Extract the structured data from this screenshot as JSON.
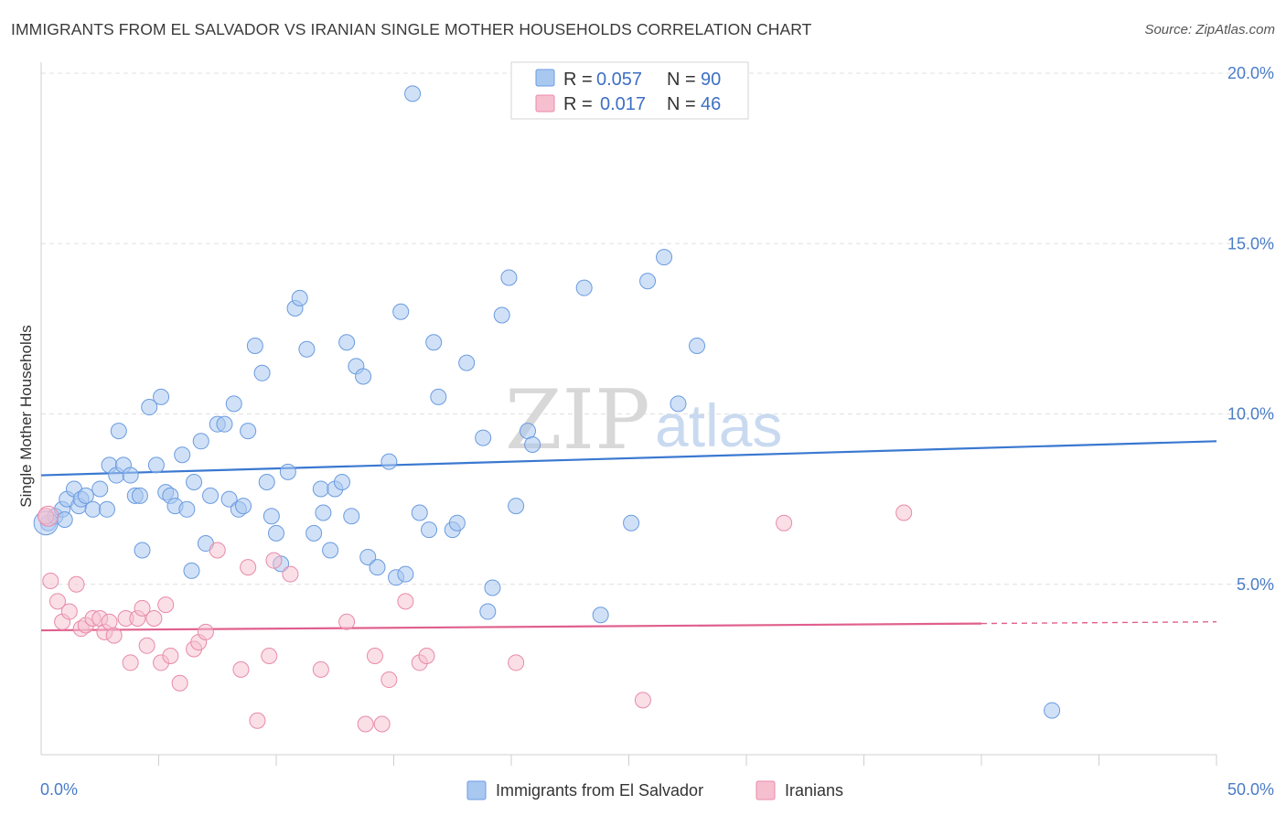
{
  "header": {
    "title": "IMMIGRANTS FROM EL SALVADOR VS IRANIAN SINGLE MOTHER HOUSEHOLDS CORRELATION CHART",
    "source": "Source: ZipAtlas.com"
  },
  "watermark": {
    "zip": "ZIP",
    "atlas": "atlas"
  },
  "legend": {
    "rows": [
      {
        "r_label": "R =",
        "r_value": "0.057",
        "n_label": "N =",
        "n_value": "90"
      },
      {
        "r_label": "R =",
        "r_value": "0.017",
        "n_label": "N =",
        "n_value": "46"
      }
    ]
  },
  "bottom_legend": {
    "items": [
      "Immigrants from El Salvador",
      "Iranians"
    ]
  },
  "colors": {
    "blue_fill": "#a9c8f0",
    "blue_stroke": "#6a9be0",
    "blue_line": "#3a78d0",
    "pink_fill": "#f6bfd0",
    "pink_stroke": "#e88aaa",
    "pink_line": "#e0608e",
    "tick_text": "#4a7cc7",
    "grid": "#e0e0e0"
  },
  "chart_data": {
    "type": "scatter",
    "title": "IMMIGRANTS FROM EL SALVADOR VS IRANIAN SINGLE MOTHER HOUSEHOLDS CORRELATION CHART",
    "xlabel": "",
    "ylabel": "Single Mother Households",
    "xlim": [
      0,
      50
    ],
    "ylim": [
      0,
      20
    ],
    "x_tick_labels": [
      "0.0%",
      "50.0%"
    ],
    "y_ticks": [
      5,
      10,
      15,
      20
    ],
    "y_tick_labels": [
      "5.0%",
      "10.0%",
      "15.0%",
      "20.0%"
    ],
    "grid": "horizontal dashed",
    "legend_position": "top-center",
    "series": [
      {
        "name": "Immigrants from El Salvador",
        "R": 0.057,
        "N": 90,
        "trend": {
          "x": [
            0,
            50
          ],
          "y": [
            8.2,
            9.2
          ]
        },
        "points": [
          [
            0.3,
            6.8
          ],
          [
            0.6,
            7.0
          ],
          [
            0.9,
            7.2
          ],
          [
            1.0,
            6.9
          ],
          [
            1.1,
            7.5
          ],
          [
            1.4,
            7.8
          ],
          [
            1.6,
            7.3
          ],
          [
            1.7,
            7.5
          ],
          [
            1.9,
            7.6
          ],
          [
            2.2,
            7.2
          ],
          [
            2.5,
            7.8
          ],
          [
            2.8,
            7.2
          ],
          [
            2.9,
            8.5
          ],
          [
            3.2,
            8.2
          ],
          [
            3.3,
            9.5
          ],
          [
            3.5,
            8.5
          ],
          [
            3.8,
            8.2
          ],
          [
            4.0,
            7.6
          ],
          [
            4.2,
            7.6
          ],
          [
            4.3,
            6.0
          ],
          [
            4.6,
            10.2
          ],
          [
            4.9,
            8.5
          ],
          [
            5.1,
            10.5
          ],
          [
            5.3,
            7.7
          ],
          [
            5.5,
            7.6
          ],
          [
            5.7,
            7.3
          ],
          [
            6.0,
            8.8
          ],
          [
            6.2,
            7.2
          ],
          [
            6.4,
            5.4
          ],
          [
            6.5,
            8.0
          ],
          [
            6.8,
            9.2
          ],
          [
            7.0,
            6.2
          ],
          [
            7.2,
            7.6
          ],
          [
            7.5,
            9.7
          ],
          [
            7.8,
            9.7
          ],
          [
            8.0,
            7.5
          ],
          [
            8.2,
            10.3
          ],
          [
            8.4,
            7.2
          ],
          [
            8.6,
            7.3
          ],
          [
            8.8,
            9.5
          ],
          [
            9.1,
            12.0
          ],
          [
            9.4,
            11.2
          ],
          [
            9.6,
            8.0
          ],
          [
            9.8,
            7.0
          ],
          [
            10.0,
            6.5
          ],
          [
            10.2,
            5.6
          ],
          [
            10.5,
            8.3
          ],
          [
            10.8,
            13.1
          ],
          [
            11.0,
            13.4
          ],
          [
            11.3,
            11.9
          ],
          [
            11.6,
            6.5
          ],
          [
            11.9,
            7.8
          ],
          [
            12.0,
            7.1
          ],
          [
            12.3,
            6.0
          ],
          [
            12.5,
            7.8
          ],
          [
            12.8,
            8.0
          ],
          [
            13.0,
            12.1
          ],
          [
            13.2,
            7.0
          ],
          [
            13.4,
            11.4
          ],
          [
            13.7,
            11.1
          ],
          [
            13.9,
            5.8
          ],
          [
            14.3,
            5.5
          ],
          [
            14.8,
            8.6
          ],
          [
            15.1,
            5.2
          ],
          [
            15.3,
            13.0
          ],
          [
            15.5,
            5.3
          ],
          [
            15.8,
            19.4
          ],
          [
            16.1,
            7.1
          ],
          [
            16.5,
            6.6
          ],
          [
            16.7,
            12.1
          ],
          [
            16.9,
            10.5
          ],
          [
            17.5,
            6.6
          ],
          [
            17.7,
            6.8
          ],
          [
            18.1,
            11.5
          ],
          [
            18.8,
            9.3
          ],
          [
            19.0,
            4.2
          ],
          [
            19.2,
            4.9
          ],
          [
            19.6,
            12.9
          ],
          [
            19.9,
            14.0
          ],
          [
            20.2,
            7.3
          ],
          [
            20.7,
            9.5
          ],
          [
            20.9,
            9.1
          ],
          [
            23.1,
            13.7
          ],
          [
            23.8,
            4.1
          ],
          [
            25.1,
            6.8
          ],
          [
            25.8,
            13.9
          ],
          [
            26.5,
            14.6
          ],
          [
            27.1,
            10.3
          ],
          [
            27.9,
            12.0
          ],
          [
            43.0,
            1.3
          ]
        ]
      },
      {
        "name": "Iranians",
        "R": 0.017,
        "N": 46,
        "trend": {
          "x": [
            0,
            40
          ],
          "y": [
            3.65,
            3.85
          ]
        },
        "trend_dashed": {
          "x": [
            40,
            50
          ],
          "y": [
            3.85,
            3.9
          ]
        },
        "points": [
          [
            0.2,
            7.0
          ],
          [
            0.4,
            5.1
          ],
          [
            0.7,
            4.5
          ],
          [
            0.9,
            3.9
          ],
          [
            1.2,
            4.2
          ],
          [
            1.5,
            5.0
          ],
          [
            1.7,
            3.7
          ],
          [
            1.9,
            3.8
          ],
          [
            2.2,
            4.0
          ],
          [
            2.5,
            4.0
          ],
          [
            2.7,
            3.6
          ],
          [
            2.9,
            3.9
          ],
          [
            3.1,
            3.5
          ],
          [
            3.6,
            4.0
          ],
          [
            3.8,
            2.7
          ],
          [
            4.1,
            4.0
          ],
          [
            4.3,
            4.3
          ],
          [
            4.5,
            3.2
          ],
          [
            4.8,
            4.0
          ],
          [
            5.1,
            2.7
          ],
          [
            5.3,
            4.4
          ],
          [
            5.5,
            2.9
          ],
          [
            5.9,
            2.1
          ],
          [
            6.5,
            3.1
          ],
          [
            6.7,
            3.3
          ],
          [
            7.0,
            3.6
          ],
          [
            7.5,
            6.0
          ],
          [
            8.5,
            2.5
          ],
          [
            8.8,
            5.5
          ],
          [
            9.2,
            1.0
          ],
          [
            9.7,
            2.9
          ],
          [
            9.9,
            5.7
          ],
          [
            10.6,
            5.3
          ],
          [
            11.9,
            2.5
          ],
          [
            13.0,
            3.9
          ],
          [
            13.8,
            0.9
          ],
          [
            14.2,
            2.9
          ],
          [
            14.5,
            0.9
          ],
          [
            14.8,
            2.2
          ],
          [
            15.5,
            4.5
          ],
          [
            16.1,
            2.7
          ],
          [
            16.4,
            2.9
          ],
          [
            20.2,
            2.7
          ],
          [
            25.6,
            1.6
          ],
          [
            31.6,
            6.8
          ],
          [
            36.7,
            7.1
          ]
        ]
      }
    ]
  }
}
